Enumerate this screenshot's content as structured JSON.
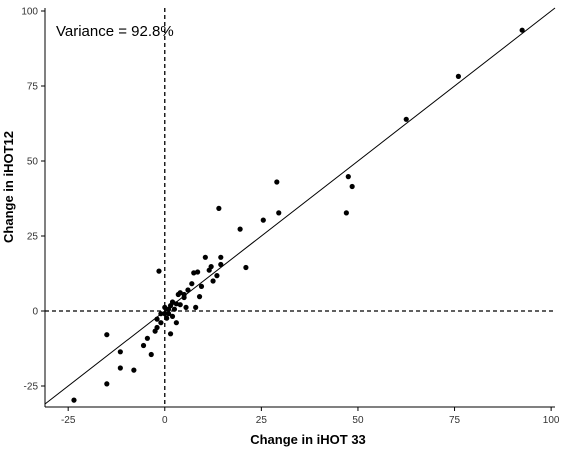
{
  "chart_data": {
    "type": "scatter",
    "xlabel": "Change in iHOT 33",
    "ylabel": "Change in iHOT12",
    "annotation": "Variance = 92.8%",
    "xlim": [
      -31,
      101
    ],
    "ylim": [
      -32,
      101
    ],
    "x_ticks": [
      -25,
      0,
      25,
      50,
      75,
      100
    ],
    "y_ticks": [
      -25,
      0,
      25,
      50,
      75,
      100
    ],
    "x_tick_labels": [
      "-25",
      "0",
      "25",
      "50",
      "75",
      "100"
    ],
    "y_tick_labels": [
      "-25",
      "0",
      "25",
      "50",
      "75",
      "100"
    ],
    "reference_lines": {
      "x": 0,
      "y": 0,
      "style": "dashed"
    },
    "identity_line": true,
    "grid": false,
    "point_color": "#000000",
    "points": [
      {
        "x": -23.5,
        "y": -29.7
      },
      {
        "x": -15.0,
        "y": -24.3
      },
      {
        "x": -15.0,
        "y": -7.9
      },
      {
        "x": -11.5,
        "y": -13.6
      },
      {
        "x": -11.5,
        "y": -19.0
      },
      {
        "x": -8.0,
        "y": -19.7
      },
      {
        "x": -5.5,
        "y": -11.5
      },
      {
        "x": -4.5,
        "y": -9.1
      },
      {
        "x": -3.5,
        "y": -14.5
      },
      {
        "x": -2.5,
        "y": -6.7
      },
      {
        "x": -2.0,
        "y": -5.5
      },
      {
        "x": -2.0,
        "y": -2.7
      },
      {
        "x": -1.5,
        "y": 13.3
      },
      {
        "x": -1.0,
        "y": -3.9
      },
      {
        "x": -1.0,
        "y": -0.9
      },
      {
        "x": 0.0,
        "y": -0.9
      },
      {
        "x": 0.0,
        "y": 1.2
      },
      {
        "x": 0.5,
        "y": -2.4
      },
      {
        "x": 1.0,
        "y": -0.9
      },
      {
        "x": 1.0,
        "y": 0.6
      },
      {
        "x": 1.5,
        "y": 1.8
      },
      {
        "x": 1.5,
        "y": -7.6
      },
      {
        "x": 2.0,
        "y": -1.8
      },
      {
        "x": 2.0,
        "y": 3.0
      },
      {
        "x": 2.5,
        "y": 0.6
      },
      {
        "x": 3.0,
        "y": 2.4
      },
      {
        "x": 3.0,
        "y": -3.9
      },
      {
        "x": 3.5,
        "y": 5.5
      },
      {
        "x": 4.0,
        "y": 2.1
      },
      {
        "x": 4.0,
        "y": 6.1
      },
      {
        "x": 5.0,
        "y": 4.5
      },
      {
        "x": 5.0,
        "y": 5.5
      },
      {
        "x": 5.5,
        "y": 1.2
      },
      {
        "x": 6.0,
        "y": 7.0
      },
      {
        "x": 7.0,
        "y": 9.1
      },
      {
        "x": 7.5,
        "y": 12.7
      },
      {
        "x": 8.0,
        "y": 1.2
      },
      {
        "x": 8.5,
        "y": 13.0
      },
      {
        "x": 9.0,
        "y": 4.8
      },
      {
        "x": 9.5,
        "y": 8.2
      },
      {
        "x": 10.5,
        "y": 17.9
      },
      {
        "x": 11.5,
        "y": 13.6
      },
      {
        "x": 12.0,
        "y": 14.8
      },
      {
        "x": 12.5,
        "y": 10.0
      },
      {
        "x": 13.5,
        "y": 11.8
      },
      {
        "x": 14.0,
        "y": 34.2
      },
      {
        "x": 14.5,
        "y": 17.9
      },
      {
        "x": 14.5,
        "y": 15.5
      },
      {
        "x": 19.5,
        "y": 27.3
      },
      {
        "x": 21.0,
        "y": 14.5
      },
      {
        "x": 25.5,
        "y": 30.3
      },
      {
        "x": 29.0,
        "y": 43.0
      },
      {
        "x": 29.5,
        "y": 32.7
      },
      {
        "x": 47.0,
        "y": 32.7
      },
      {
        "x": 47.5,
        "y": 44.8
      },
      {
        "x": 48.5,
        "y": 41.5
      },
      {
        "x": 62.5,
        "y": 63.9
      },
      {
        "x": 76.0,
        "y": 78.2
      },
      {
        "x": 92.5,
        "y": 93.6
      }
    ]
  }
}
